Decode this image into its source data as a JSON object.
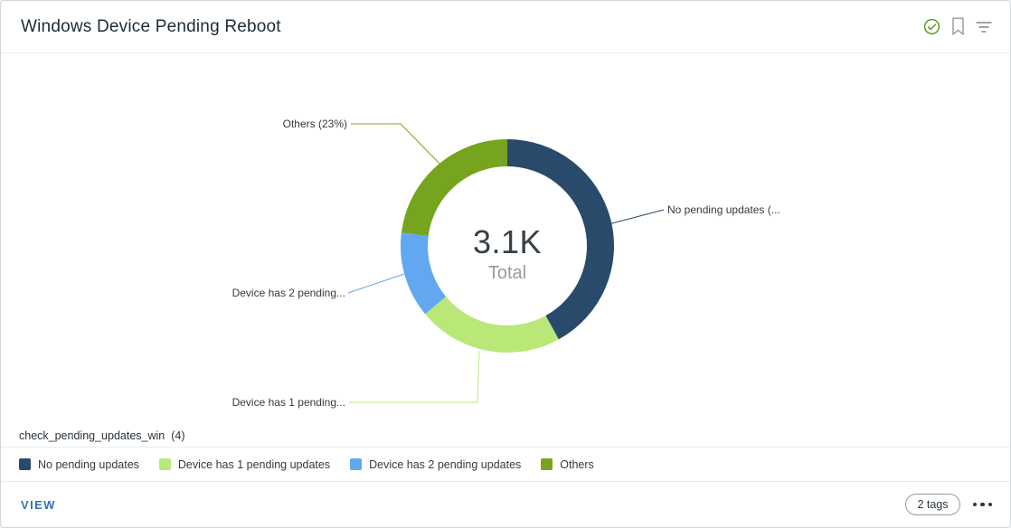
{
  "header": {
    "title": "Windows Device Pending Reboot",
    "icons": [
      {
        "name": "check-circle-icon",
        "color": "#5f9b22"
      },
      {
        "name": "bookmark-icon",
        "color": "#8f969c"
      },
      {
        "name": "filter-icon",
        "color": "#7e868c"
      }
    ]
  },
  "chart_data": {
    "type": "pie",
    "subtype": "donut",
    "total_value": "3.1K",
    "total_label": "Total",
    "source_label": "check_pending_updates_win",
    "source_count": "(4)",
    "legend_position": "bottom",
    "segments": [
      {
        "label": "No pending updates",
        "callout": "No pending updates (...",
        "percent": 42,
        "color": "#2a4a6b"
      },
      {
        "label": "Device has 1 pending updates",
        "callout": "Device has 1 pending...",
        "percent": 22,
        "color": "#b9e878"
      },
      {
        "label": "Device has 2 pending updates",
        "callout": "Device has 2 pending...",
        "percent": 13,
        "color": "#61a8f0"
      },
      {
        "label": "Others",
        "callout": "Others (23%)",
        "percent": 23,
        "color": "#76a41f"
      }
    ]
  },
  "footer": {
    "view_label": "VIEW",
    "tags_label": "2 tags",
    "view_color": "#3173b4"
  }
}
